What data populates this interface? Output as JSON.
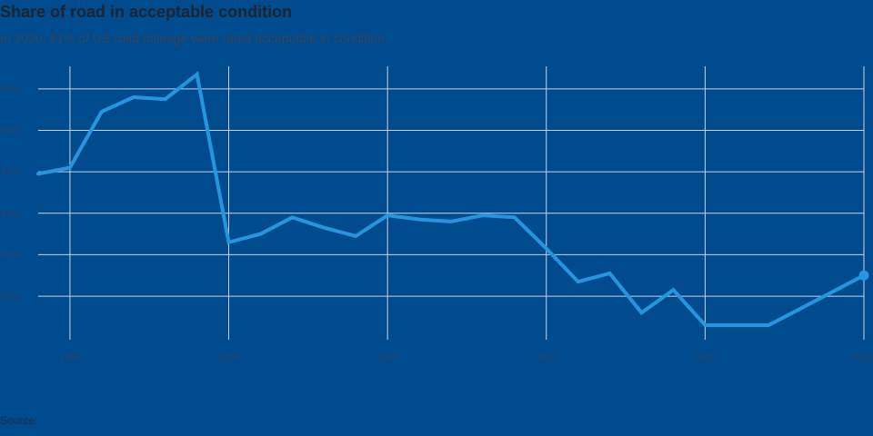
{
  "header": {
    "title": "Share of road in acceptable condition",
    "subtitle": "In 2020, 81% of US road mileage were rated acceptable in condition."
  },
  "footer": {
    "source_label": "Source:",
    "source_links": [
      "",
      ""
    ]
  },
  "colors": {
    "background": "#004a8e",
    "line": "#2596de",
    "grid": "#c9d6e6"
  },
  "chart_data": {
    "type": "line",
    "title": "Share of road in acceptable condition",
    "xlabel": "",
    "ylabel": "",
    "x": [
      1994,
      1995,
      1996,
      1997,
      1998,
      1999,
      2000,
      2001,
      2002,
      2003,
      2004,
      2005,
      2006,
      2007,
      2008,
      2009,
      2010,
      2011,
      2012,
      2013,
      2014,
      2015,
      2016,
      2017,
      2018,
      2019,
      2020
    ],
    "series": [
      {
        "name": "",
        "values": [
          85.9,
          86.2,
          88.9,
          89.6,
          89.5,
          90.7,
          82.6,
          83.0,
          83.8,
          83.3,
          82.9,
          83.9,
          83.7,
          83.6,
          83.9,
          83.8,
          82.3,
          80.7,
          81.1,
          79.2,
          80.3,
          78.6,
          78.6,
          78.6,
          79.4,
          80.2,
          81.0
        ]
      }
    ],
    "xlim": [
      1994,
      2020
    ],
    "ylim": [
      77.9,
      91.0
    ],
    "x_ticks": [
      {
        "value": 1995,
        "label": "1995"
      },
      {
        "value": 2000,
        "label": "2000"
      },
      {
        "value": 2005,
        "label": "2005"
      },
      {
        "value": 2010,
        "label": "2010"
      },
      {
        "value": 2015,
        "label": "2015"
      },
      {
        "value": 2020,
        "label": "2020"
      }
    ],
    "y_ticks": [
      {
        "value": 80,
        "label": "80%"
      },
      {
        "value": 82,
        "label": "82%"
      },
      {
        "value": 84,
        "label": "84%"
      },
      {
        "value": 86,
        "label": "86%"
      },
      {
        "value": 88,
        "label": "88%"
      },
      {
        "value": 90,
        "label": "90%"
      }
    ],
    "grid": true,
    "legend": "none",
    "end_marker": true
  }
}
